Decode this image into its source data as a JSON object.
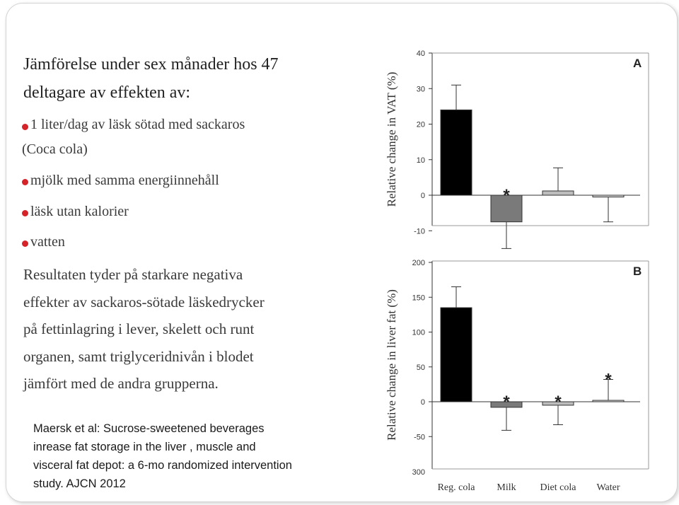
{
  "slide": {
    "title_lines": [
      "Jämförelse under sex månader hos 47",
      "deltagare av effekten av:"
    ],
    "bullets": [
      {
        "lines": [
          "1 liter/dag av läsk sötad med sackaros",
          "(Coca cola)"
        ]
      },
      {
        "lines": [
          "mjölk med samma energiinnehåll"
        ]
      },
      {
        "lines": [
          "läsk utan kalorier"
        ]
      },
      {
        "lines": [
          "vatten"
        ]
      }
    ],
    "result_lines": [
      "Resultaten tyder på starkare negativa",
      "effekter av sackaros-sötade läskedrycker",
      "på fettinlagring i lever, skelett och runt",
      "organen, samt triglyceridnivån i blodet",
      "jämfört med de andra grupperna."
    ],
    "citation_lines": [
      "Maersk et al: Sucrose-sweetened beverages",
      "inrease fat storage in the liver , muscle and",
      "visceral fat depot: a 6-mo randomized intervention",
      "study. AJCN 2012"
    ],
    "colors": {
      "bullet_dot": "#d5232a",
      "bar_reg_cola": "#000000",
      "bar_milk": "#7a7a7a",
      "bar_diet_cola": "#bdbdbd",
      "bar_water": "#d9d9d9"
    }
  },
  "chart_data": [
    {
      "type": "bar",
      "panel": "A",
      "ylabel": "Relative change in VAT (%)",
      "categories": [
        "Reg. cola",
        "Milk",
        "Diet cola",
        "Water"
      ],
      "values": [
        24,
        -7.5,
        1.2,
        -0.5
      ],
      "error_up": [
        7,
        0,
        6.5,
        0
      ],
      "error_down": [
        0,
        7.5,
        0,
        7
      ],
      "significant": [
        false,
        true,
        false,
        false
      ],
      "ylim": [
        -15,
        40
      ],
      "yticks": [
        -10,
        0,
        10,
        20,
        30,
        40
      ],
      "ytick_labels": [
        "-10",
        "0",
        "10",
        "20",
        "30",
        "40"
      ],
      "grid": false
    },
    {
      "type": "bar",
      "panel": "B",
      "ylabel": "Relative change in liver fat (%)",
      "categories": [
        "Reg. cola",
        "Milk",
        "Diet cola",
        "Water"
      ],
      "values": [
        135,
        -8,
        -5,
        2
      ],
      "error_up": [
        30,
        0,
        0,
        30
      ],
      "error_down": [
        0,
        33,
        28,
        0
      ],
      "significant": [
        false,
        true,
        true,
        true
      ],
      "ylim": [
        -100,
        200
      ],
      "yticks": [
        -50,
        0,
        50,
        100,
        150,
        200
      ],
      "ytick_labels": [
        "-50",
        "0",
        "50",
        "100",
        "150",
        "200"
      ],
      "extra_tick_label": "300",
      "grid": false
    }
  ]
}
